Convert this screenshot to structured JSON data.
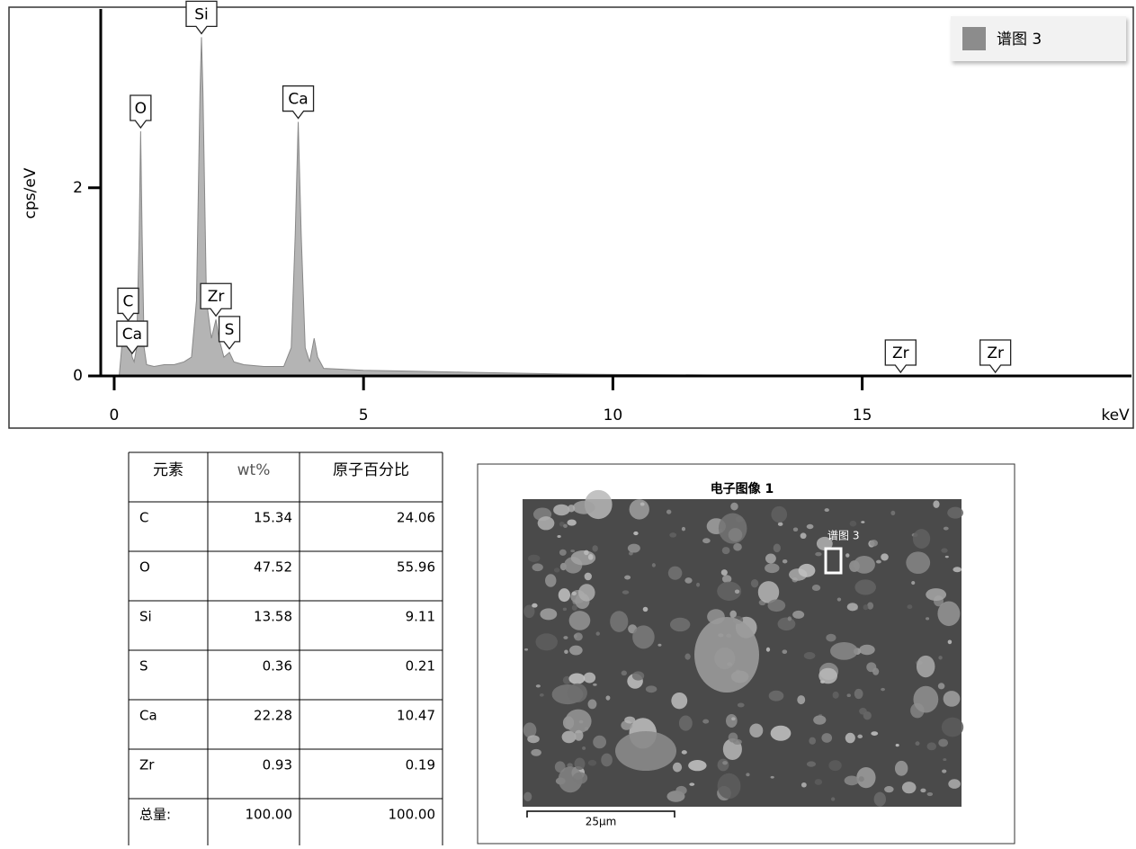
{
  "chart_data": {
    "type": "area",
    "y_label": "cps/eV",
    "x_unit_label": "keV",
    "x": [
      0.1,
      0.15,
      0.2,
      0.28,
      0.32,
      0.36,
      0.4,
      0.45,
      0.5,
      0.53,
      0.56,
      0.6,
      0.65,
      0.8,
      1.0,
      1.2,
      1.4,
      1.55,
      1.65,
      1.72,
      1.75,
      1.78,
      1.85,
      1.95,
      2.04,
      2.1,
      2.2,
      2.31,
      2.4,
      2.6,
      3.0,
      3.4,
      3.55,
      3.63,
      3.69,
      3.75,
      3.83,
      3.92,
      4.01,
      4.08,
      4.2,
      5,
      6,
      7,
      8,
      9,
      10,
      12,
      14,
      16,
      18,
      20
    ],
    "series": [
      {
        "name": "谱图 3",
        "color": "#b4b4b4",
        "values": [
          0,
          0.3,
          0.5,
          0.55,
          0.35,
          0.2,
          0.15,
          0.3,
          1.5,
          2.6,
          1.5,
          0.3,
          0.12,
          0.1,
          0.12,
          0.12,
          0.15,
          0.2,
          0.8,
          3.0,
          3.6,
          3.0,
          0.8,
          0.4,
          0.6,
          0.4,
          0.2,
          0.25,
          0.15,
          0.12,
          0.1,
          0.1,
          0.3,
          1.5,
          2.7,
          1.5,
          0.3,
          0.15,
          0.4,
          0.2,
          0.08,
          0.06,
          0.05,
          0.04,
          0.03,
          0.02,
          0.015,
          0.01,
          0.008,
          0.006,
          0.005,
          0.004
        ]
      }
    ],
    "legend_color": "#8c8c8c",
    "xlim": [
      -0.27,
      20.4
    ],
    "xticks": [
      0,
      5,
      10,
      15
    ],
    "ylim": [
      0,
      3.9
    ],
    "yticks": [
      0,
      2
    ],
    "annotations": [
      {
        "text": "C",
        "x": 0.28,
        "y": 0.55
      },
      {
        "text": "Ca",
        "x": 0.36,
        "y": 0.2
      },
      {
        "text": "O",
        "x": 0.53,
        "y": 2.6
      },
      {
        "text": "Si",
        "x": 1.75,
        "y": 3.6
      },
      {
        "text": "Zr",
        "x": 2.04,
        "y": 0.6
      },
      {
        "text": "S",
        "x": 2.31,
        "y": 0.25
      },
      {
        "text": "Ca",
        "x": 3.69,
        "y": 2.7
      },
      {
        "text": "Zr",
        "x": 15.77,
        "y": 0.0
      },
      {
        "text": "Zr",
        "x": 17.67,
        "y": 0.0
      }
    ]
  },
  "table": {
    "header": [
      "元素",
      "wt%",
      "原子百分比"
    ],
    "rows": [
      [
        "C",
        "15.34",
        "24.06"
      ],
      [
        "O",
        "47.52",
        "55.96"
      ],
      [
        "Si",
        "13.58",
        "9.11"
      ],
      [
        "S",
        "0.36",
        "0.21"
      ],
      [
        "Ca",
        "22.28",
        "10.47"
      ],
      [
        "Zr",
        "0.93",
        "0.19"
      ],
      [
        "总量:",
        "100.00",
        "100.00"
      ]
    ]
  },
  "sem_image": {
    "title": "电子图像 1",
    "region_label": "谱图 3",
    "scale_bar": "25μm"
  }
}
